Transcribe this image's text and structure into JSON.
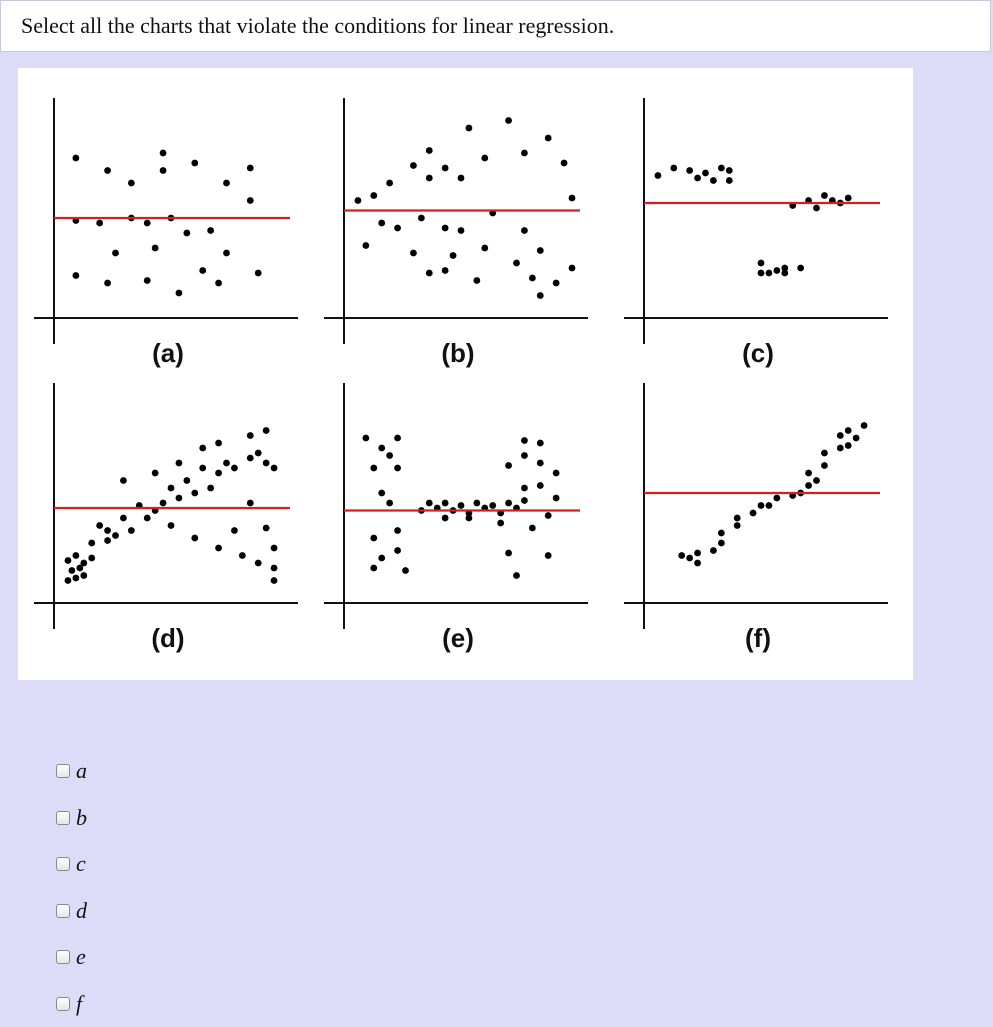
{
  "question": {
    "text": "Select all the charts that violate the conditions for linear regression."
  },
  "chart_data": [
    {
      "type": "scatter",
      "label": "(a)",
      "fit_line": "horizontal",
      "points": [
        [
          2,
          6
        ],
        [
          6,
          5.5
        ],
        [
          9,
          5
        ],
        [
          13,
          6.2
        ],
        [
          13,
          5.5
        ],
        [
          17,
          5.8
        ],
        [
          21,
          5
        ],
        [
          24,
          5.6
        ],
        [
          2,
          3.5
        ],
        [
          5,
          3.4
        ],
        [
          9,
          3.6
        ],
        [
          11,
          3.4
        ],
        [
          14,
          3.6
        ],
        [
          16,
          3
        ],
        [
          7,
          2.2
        ],
        [
          12,
          2.4
        ],
        [
          19,
          3.1
        ],
        [
          21,
          2.2
        ],
        [
          2,
          1.3
        ],
        [
          6,
          1
        ],
        [
          11,
          1.1
        ],
        [
          15,
          0.6
        ],
        [
          18,
          1.5
        ],
        [
          20,
          1
        ],
        [
          25,
          1.4
        ],
        [
          24,
          4.3
        ]
      ],
      "line_y": 3.6,
      "color": "#d42020"
    },
    {
      "type": "scatter",
      "label": "(b)",
      "fit_line": "horizontal",
      "points": [
        [
          1,
          4.3
        ],
        [
          3,
          4.5
        ],
        [
          5,
          5
        ],
        [
          8,
          5.7
        ],
        [
          10,
          6.3
        ],
        [
          10,
          5.2
        ],
        [
          12,
          5.6
        ],
        [
          14,
          5.2
        ],
        [
          17,
          6
        ],
        [
          22,
          6.2
        ],
        [
          25,
          6.8
        ],
        [
          27,
          5.8
        ],
        [
          28,
          4.4
        ],
        [
          15,
          7.2
        ],
        [
          20,
          7.5
        ],
        [
          4,
          3.4
        ],
        [
          6,
          3.2
        ],
        [
          9,
          3.6
        ],
        [
          12,
          3.2
        ],
        [
          14,
          3.1
        ],
        [
          18,
          3.8
        ],
        [
          22,
          3.1
        ],
        [
          2,
          2.5
        ],
        [
          8,
          2.2
        ],
        [
          13,
          2.1
        ],
        [
          17,
          2.4
        ],
        [
          24,
          2.3
        ],
        [
          10,
          1.4
        ],
        [
          12,
          1.5
        ],
        [
          16,
          1.1
        ],
        [
          21,
          1.8
        ],
        [
          23,
          1.2
        ],
        [
          26,
          1
        ],
        [
          24,
          0.5
        ],
        [
          28,
          1.6
        ]
      ],
      "line_y": 3.9,
      "color": "#d42020"
    },
    {
      "type": "scatter",
      "label": "(c)",
      "fit_line": "horizontal",
      "points": [
        [
          1,
          5.3
        ],
        [
          3,
          5.6
        ],
        [
          5,
          5.5
        ],
        [
          6,
          5.2
        ],
        [
          7,
          5.4
        ],
        [
          8,
          5.1
        ],
        [
          9,
          5.6
        ],
        [
          10,
          5.5
        ],
        [
          10,
          5.1
        ],
        [
          18,
          4.1
        ],
        [
          20,
          4.3
        ],
        [
          21,
          4
        ],
        [
          22,
          4.5
        ],
        [
          23,
          4.3
        ],
        [
          24,
          4.2
        ],
        [
          25,
          4.4
        ],
        [
          14,
          1.8
        ],
        [
          14,
          1.4
        ],
        [
          15,
          1.4
        ],
        [
          16,
          1.5
        ],
        [
          17,
          1.4
        ],
        [
          17,
          1.6
        ],
        [
          19,
          1.6
        ]
      ],
      "line_y": 4.2,
      "color": "#d42020"
    },
    {
      "type": "scatter",
      "label": "(d)",
      "fit_line": "horizontal",
      "points": [
        [
          1,
          0.5
        ],
        [
          2,
          0.6
        ],
        [
          1.5,
          0.9
        ],
        [
          2.5,
          1
        ],
        [
          3,
          0.7
        ],
        [
          1,
          1.3
        ],
        [
          2,
          1.5
        ],
        [
          3,
          1.2
        ],
        [
          4,
          1.4
        ],
        [
          4,
          2
        ],
        [
          6,
          2.1
        ],
        [
          7,
          2.3
        ],
        [
          5,
          2.7
        ],
        [
          6,
          2.5
        ],
        [
          8,
          3
        ],
        [
          10,
          3.5
        ],
        [
          11,
          3
        ],
        [
          12,
          3.3
        ],
        [
          13,
          3.6
        ],
        [
          14,
          4.2
        ],
        [
          15,
          3.8
        ],
        [
          16,
          4.5
        ],
        [
          17,
          4
        ],
        [
          18,
          5
        ],
        [
          19,
          4.2
        ],
        [
          20,
          4.8
        ],
        [
          21,
          5.2
        ],
        [
          22,
          5
        ],
        [
          24,
          5.4
        ],
        [
          25,
          5.6
        ],
        [
          26,
          5.2
        ],
        [
          27,
          5
        ],
        [
          8,
          4.5
        ],
        [
          12,
          4.8
        ],
        [
          15,
          5.2
        ],
        [
          18,
          5.8
        ],
        [
          20,
          6
        ],
        [
          24,
          6.3
        ],
        [
          26,
          6.5
        ],
        [
          9,
          2.5
        ],
        [
          14,
          2.7
        ],
        [
          17,
          2.2
        ],
        [
          20,
          1.8
        ],
        [
          22,
          2.5
        ],
        [
          25,
          1.2
        ],
        [
          27,
          1
        ],
        [
          27,
          1.8
        ],
        [
          27,
          0.5
        ],
        [
          23,
          1.5
        ],
        [
          26,
          2.6
        ],
        [
          24,
          3.6
        ]
      ],
      "line_y": 3.4,
      "color": "#d42020"
    },
    {
      "type": "scatter",
      "label": "(e)",
      "fit_line": "horizontal",
      "points": [
        [
          2,
          6.2
        ],
        [
          4,
          5.8
        ],
        [
          6,
          6.2
        ],
        [
          5,
          5.5
        ],
        [
          3,
          5
        ],
        [
          6,
          5
        ],
        [
          4,
          4
        ],
        [
          5,
          3.6
        ],
        [
          11,
          3.4
        ],
        [
          12,
          3.6
        ],
        [
          13,
          3.3
        ],
        [
          14,
          3.5
        ],
        [
          15,
          3.2
        ],
        [
          16,
          3.6
        ],
        [
          17,
          3.4
        ],
        [
          18,
          3.5
        ],
        [
          19,
          3.2
        ],
        [
          20,
          3.6
        ],
        [
          21,
          3.4
        ],
        [
          22,
          3.7
        ],
        [
          9,
          3.3
        ],
        [
          10,
          3.6
        ],
        [
          12,
          3
        ],
        [
          15,
          3
        ],
        [
          19,
          2.8
        ],
        [
          23,
          2.6
        ],
        [
          6,
          2.5
        ],
        [
          3,
          2.2
        ],
        [
          6,
          1.7
        ],
        [
          4,
          1.4
        ],
        [
          3,
          1
        ],
        [
          7,
          0.9
        ],
        [
          20,
          1.6
        ],
        [
          25,
          1.5
        ],
        [
          21,
          0.7
        ],
        [
          20,
          5.1
        ],
        [
          22,
          5.5
        ],
        [
          24,
          6
        ],
        [
          24,
          5.2
        ],
        [
          26,
          4.8
        ],
        [
          24,
          4.3
        ],
        [
          26,
          3.8
        ],
        [
          22,
          4.2
        ],
        [
          25,
          3.1
        ],
        [
          22,
          6.1
        ]
      ],
      "line_y": 3.3,
      "color": "#d42020"
    },
    {
      "type": "scatter",
      "label": "(f)",
      "fit_line": "horizontal",
      "points": [
        [
          4,
          1.5
        ],
        [
          5,
          1.4
        ],
        [
          6,
          1.6
        ],
        [
          6,
          1.2
        ],
        [
          8,
          1.7
        ],
        [
          9,
          2
        ],
        [
          9,
          2.4
        ],
        [
          11,
          2.7
        ],
        [
          11,
          3
        ],
        [
          13,
          3.2
        ],
        [
          14,
          3.5
        ],
        [
          15,
          3.5
        ],
        [
          16,
          3.8
        ],
        [
          18,
          3.9
        ],
        [
          19,
          4
        ],
        [
          20,
          4.3
        ],
        [
          21,
          4.5
        ],
        [
          20,
          4.8
        ],
        [
          22,
          5.1
        ],
        [
          22,
          5.6
        ],
        [
          24,
          5.8
        ],
        [
          25,
          5.9
        ],
        [
          26,
          6.2
        ],
        [
          25,
          6.5
        ],
        [
          27,
          6.7
        ],
        [
          24,
          6.3
        ]
      ],
      "line_y": 4,
      "color": "#d42020"
    }
  ],
  "answers": [
    {
      "label": "a"
    },
    {
      "label": "b"
    },
    {
      "label": "c"
    },
    {
      "label": "d"
    },
    {
      "label": "e"
    },
    {
      "label": "f"
    }
  ]
}
